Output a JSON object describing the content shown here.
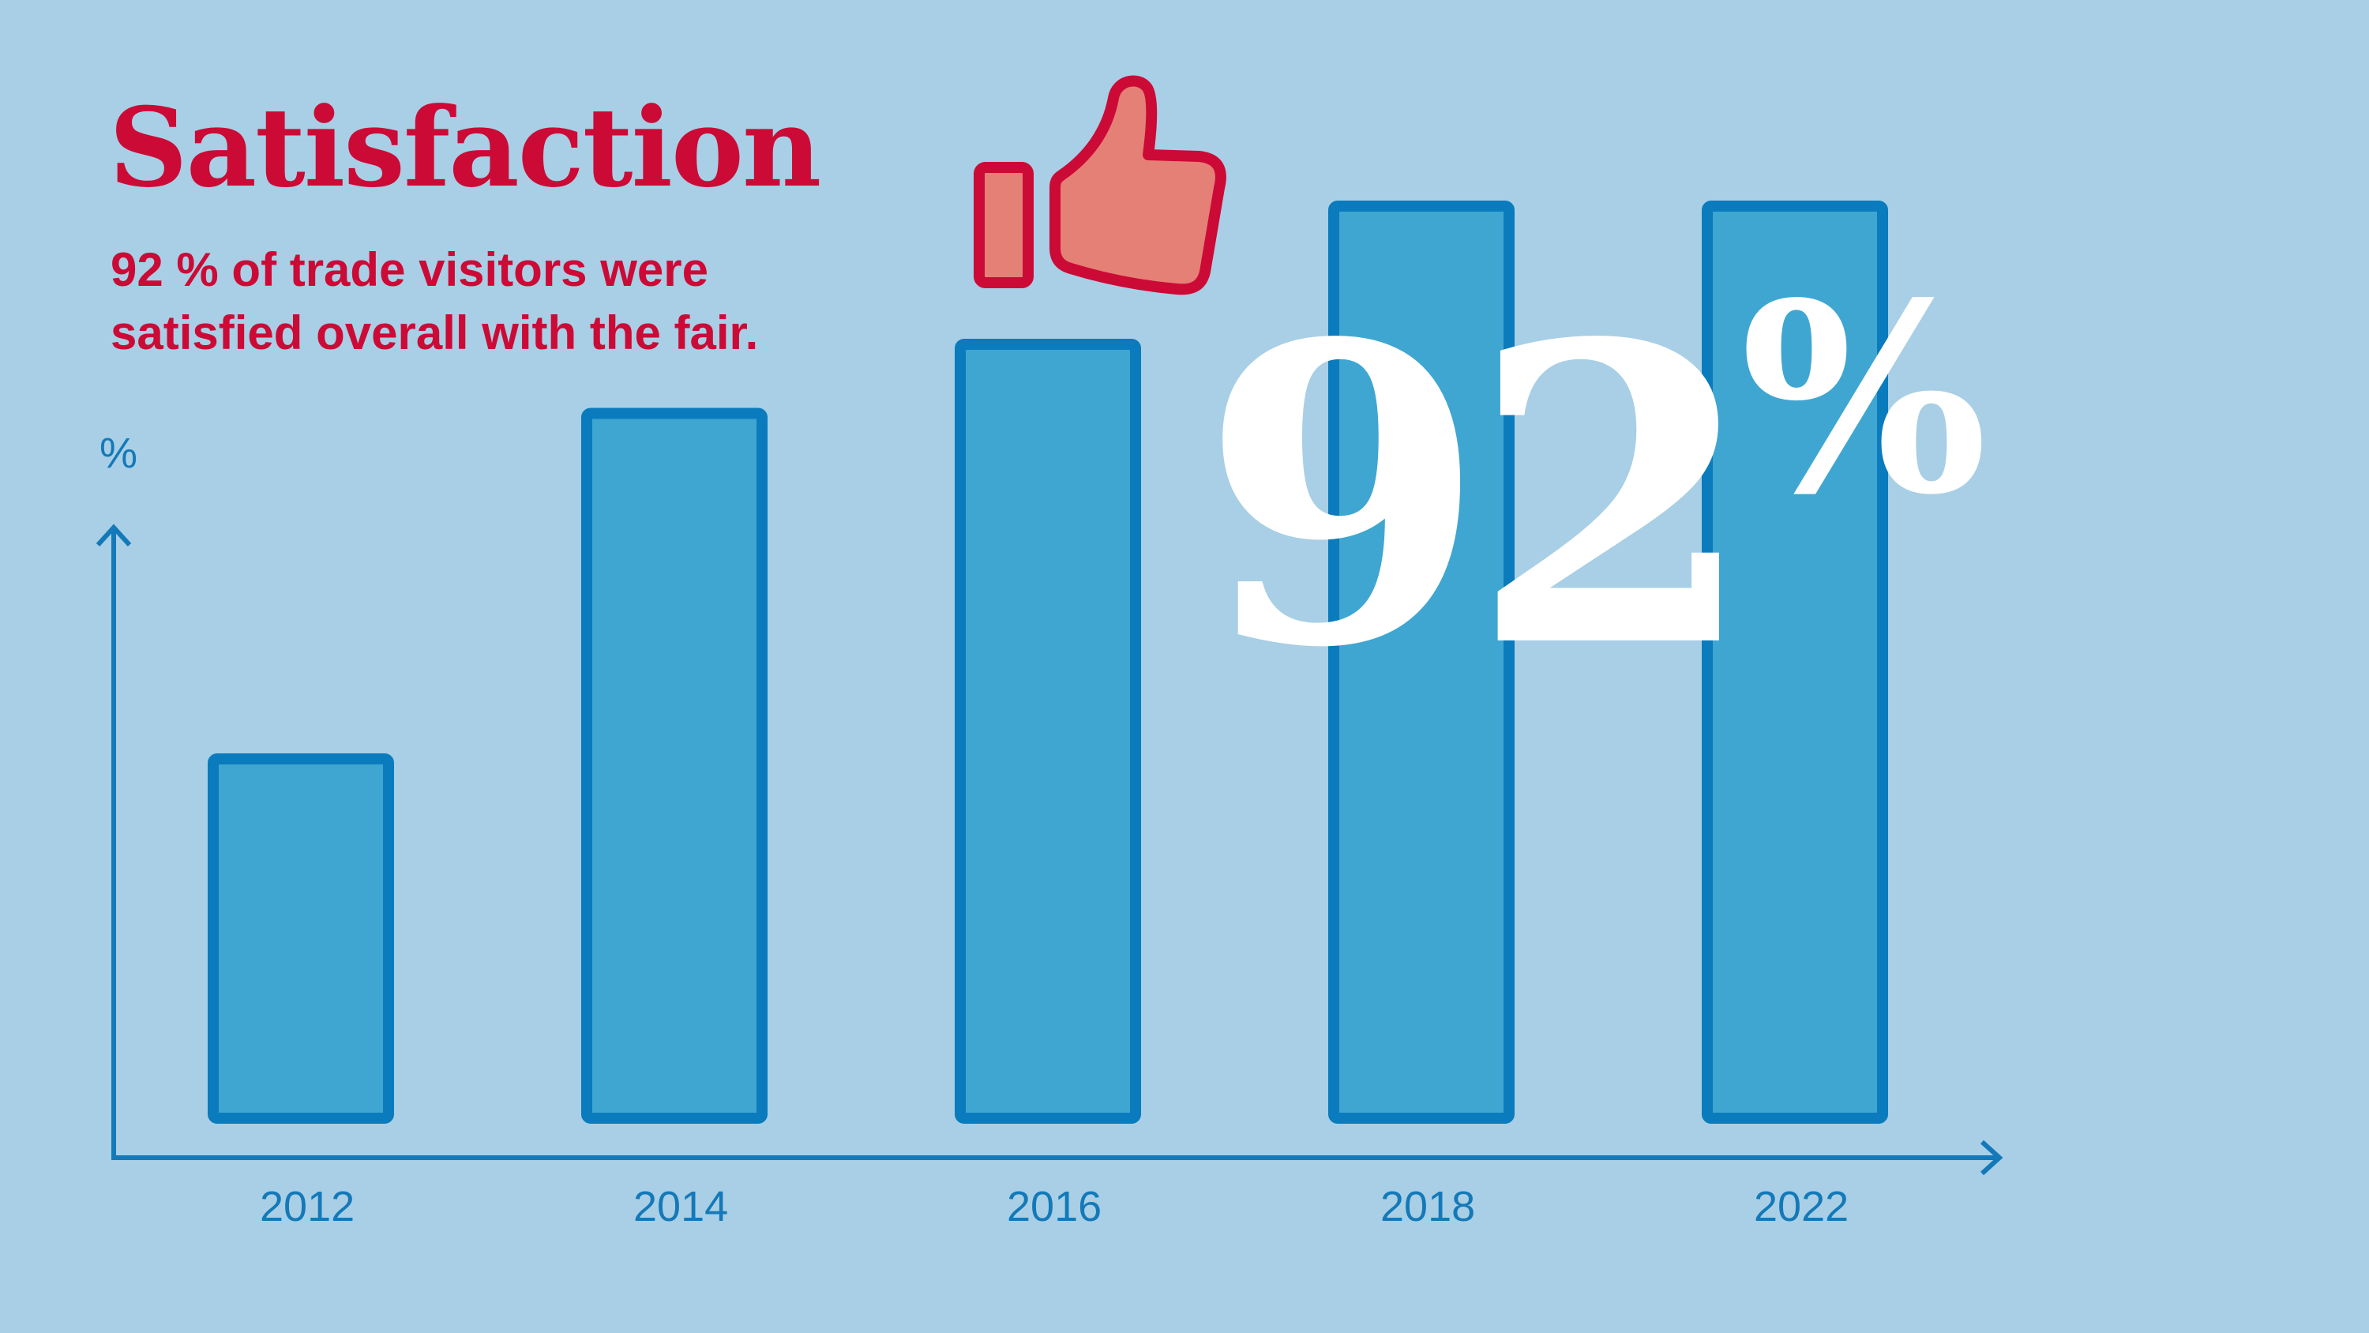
{
  "title": "Satisfaction",
  "subtitle": "92 % of trade visitors were satisfied overall with the fair.",
  "highlight": {
    "number": "92",
    "unit": "%"
  },
  "icon": "thumbs-up-icon",
  "colors": {
    "background": "#a8cfe5",
    "accent": "#cc0a36",
    "thumb_fill": "#e58076",
    "bar_fill": "#3fa6d1",
    "bar_stroke": "#0a7bbd",
    "axis": "#1479b8",
    "highlight_text": "#ffffff"
  },
  "chart_data": {
    "type": "bar",
    "categories": [
      "2012",
      "2014",
      "2016",
      "2018",
      "2022"
    ],
    "values": [
      84,
      89,
      90,
      92,
      92
    ],
    "ylabel": "%",
    "xlabel": "",
    "value_labels_shown": false,
    "grid": false
  }
}
